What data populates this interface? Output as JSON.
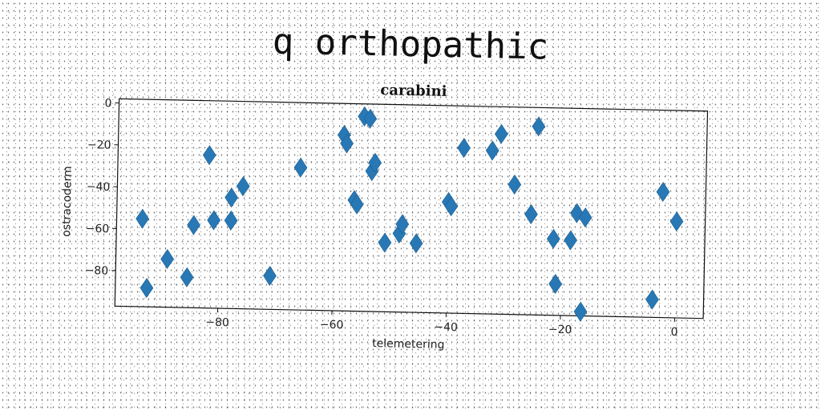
{
  "figure": {
    "title": "q orthopathic"
  },
  "chart_data": {
    "type": "scatter",
    "title": "carabini",
    "xlabel": "telemetering",
    "ylabel": "ostracoderm",
    "xlim": [
      -98,
      5
    ],
    "ylim": [
      -97,
      2
    ],
    "xticks": [
      -80,
      -60,
      -40,
      -20,
      0
    ],
    "yticks": [
      0,
      -20,
      -40,
      -60,
      -80
    ],
    "marker": "thin_diamond",
    "color": "#2878b5",
    "grid": false,
    "legend": "none",
    "series": [
      {
        "points": [
          [
            -93.5,
            -55
          ],
          [
            -92.5,
            -88
          ],
          [
            -89,
            -74
          ],
          [
            -85.5,
            -82.5
          ],
          [
            -84.5,
            -57.5
          ],
          [
            -82,
            -24
          ],
          [
            -81,
            -55
          ],
          [
            -78,
            -44
          ],
          [
            -78,
            -55
          ],
          [
            -76,
            -38.5
          ],
          [
            -71,
            -81
          ],
          [
            -66,
            -29
          ],
          [
            -58.5,
            -13
          ],
          [
            -58,
            -17
          ],
          [
            -56.5,
            -44
          ],
          [
            -56,
            -46
          ],
          [
            -55,
            -4
          ],
          [
            -54,
            -5
          ],
          [
            -53.5,
            -30
          ],
          [
            -53,
            -26
          ],
          [
            -51,
            -64
          ],
          [
            -48.5,
            -59.5
          ],
          [
            -48,
            -55
          ],
          [
            -45.5,
            -64
          ],
          [
            -40,
            -44
          ],
          [
            -39.5,
            -46
          ],
          [
            -37.5,
            -18
          ],
          [
            -32.5,
            -19
          ],
          [
            -31,
            -11
          ],
          [
            -28.5,
            -35
          ],
          [
            -25.5,
            -49
          ],
          [
            -24.5,
            -7
          ],
          [
            -21.5,
            -60.5
          ],
          [
            -21,
            -82
          ],
          [
            -18.5,
            -61
          ],
          [
            -17.5,
            -48
          ],
          [
            -16.5,
            -95
          ],
          [
            -16,
            -50
          ],
          [
            -4,
            -88.5
          ],
          [
            -2.5,
            -37
          ],
          [
            0,
            -51
          ]
        ]
      }
    ]
  }
}
